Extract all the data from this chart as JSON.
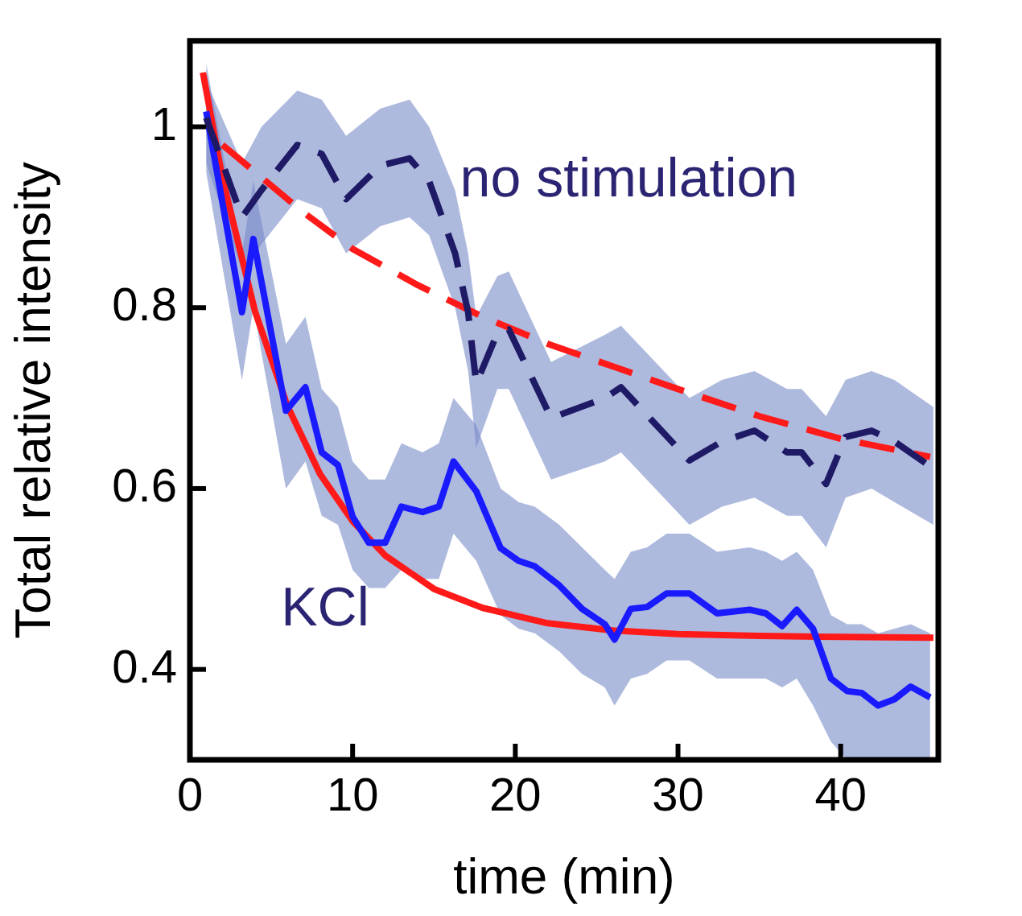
{
  "chart_data": {
    "type": "line",
    "xlabel": "time (min)",
    "ylabel": "Total relative intensity",
    "xlim": [
      0,
      46
    ],
    "xticks": [
      0,
      10,
      20,
      30,
      40
    ],
    "ylim": [
      0.3,
      1.095
    ],
    "yticks": [
      0.4,
      0.6,
      0.8,
      1
    ],
    "legend": false,
    "marker": "none",
    "series": [
      {
        "name": "no stimulation",
        "color": "#1f1a66",
        "line_style": "dashed",
        "x": [
          1,
          3.2,
          4.4,
          6.6,
          8.1,
          9.6,
          11.7,
          13.5,
          14.7,
          16.3,
          17.1,
          17.6,
          18.9,
          19.6,
          22.2,
          25.5,
          26.5,
          30.7,
          32.7,
          34.7,
          36.7,
          37.6,
          39.1,
          40.3,
          41.9,
          43.3,
          45.7
        ],
        "values": [
          1.01,
          0.9,
          0.93,
          0.98,
          0.97,
          0.92,
          0.957,
          0.965,
          0.94,
          0.86,
          0.795,
          0.716,
          0.772,
          0.776,
          0.678,
          0.7,
          0.712,
          0.631,
          0.652,
          0.664,
          0.64,
          0.64,
          0.605,
          0.657,
          0.664,
          0.652,
          0.622
        ],
        "upper": [
          1.05,
          0.96,
          1.0,
          1.04,
          1.03,
          0.99,
          1.02,
          1.03,
          1.0,
          0.93,
          0.86,
          0.79,
          0.835,
          0.84,
          0.74,
          0.77,
          0.78,
          0.7,
          0.72,
          0.73,
          0.71,
          0.71,
          0.68,
          0.72,
          0.73,
          0.72,
          0.69
        ],
        "lower": [
          0.96,
          0.84,
          0.87,
          0.92,
          0.91,
          0.86,
          0.89,
          0.9,
          0.88,
          0.8,
          0.73,
          0.645,
          0.71,
          0.71,
          0.61,
          0.63,
          0.64,
          0.56,
          0.58,
          0.59,
          0.57,
          0.57,
          0.535,
          0.59,
          0.6,
          0.585,
          0.56
        ]
      },
      {
        "name": "KCl",
        "color": "#1a1aff",
        "line_style": "solid",
        "x": [
          1,
          3.2,
          3.9,
          5.9,
          7.1,
          8.1,
          9.1,
          10,
          11,
          12,
          13,
          14.3,
          15.3,
          16.2,
          17.6,
          19.1,
          20.2,
          21.2,
          22.7,
          24.1,
          25.5,
          26.1,
          27.1,
          28.1,
          29.3,
          30.7,
          32.4,
          34.4,
          35.4,
          36.4,
          37.3,
          38.3,
          39.4,
          40.4,
          41.3,
          42.3,
          43.3,
          44.3,
          45.5
        ],
        "values": [
          1.017,
          0.795,
          0.876,
          0.686,
          0.712,
          0.64,
          0.626,
          0.569,
          0.54,
          0.54,
          0.58,
          0.574,
          0.58,
          0.63,
          0.597,
          0.534,
          0.52,
          0.514,
          0.493,
          0.467,
          0.45,
          0.433,
          0.467,
          0.469,
          0.484,
          0.484,
          0.462,
          0.466,
          0.462,
          0.448,
          0.466,
          0.445,
          0.39,
          0.376,
          0.374,
          0.36,
          0.367,
          0.381,
          0.369
        ],
        "upper": [
          1.07,
          0.86,
          0.94,
          0.76,
          0.79,
          0.71,
          0.69,
          0.63,
          0.61,
          0.61,
          0.65,
          0.64,
          0.65,
          0.7,
          0.67,
          0.6,
          0.585,
          0.58,
          0.56,
          0.535,
          0.51,
          0.5,
          0.53,
          0.535,
          0.55,
          0.55,
          0.53,
          0.535,
          0.53,
          0.52,
          0.53,
          0.51,
          0.46,
          0.45,
          0.45,
          0.44,
          0.445,
          0.45,
          0.44
        ],
        "lower": [
          0.95,
          0.72,
          0.8,
          0.6,
          0.63,
          0.57,
          0.56,
          0.51,
          0.49,
          0.49,
          0.51,
          0.5,
          0.5,
          0.55,
          0.52,
          0.46,
          0.445,
          0.44,
          0.42,
          0.395,
          0.38,
          0.36,
          0.39,
          0.395,
          0.41,
          0.41,
          0.39,
          0.39,
          0.39,
          0.38,
          0.39,
          0.36,
          0.32,
          0.3,
          0.3,
          0.3,
          0.3,
          0.3,
          0.3
        ]
      },
      {
        "color": "#ff1a1a",
        "line_style": "solid",
        "x": [
          0.8,
          2,
          4,
          6,
          8,
          10,
          12,
          15,
          18,
          22,
          26,
          30,
          35,
          40,
          45.7
        ],
        "values": [
          1.06,
          0.943,
          0.796,
          0.691,
          0.616,
          0.564,
          0.526,
          0.489,
          0.468,
          0.451,
          0.443,
          0.439,
          0.437,
          0.436,
          0.435
        ]
      },
      {
        "color": "#ff1a1a",
        "line_style": "dashed",
        "x": [
          2,
          4,
          7,
          10,
          14,
          18,
          22,
          26,
          30,
          35,
          40,
          45.5
        ],
        "values": [
          0.98,
          0.95,
          0.905,
          0.865,
          0.825,
          0.79,
          0.76,
          0.735,
          0.71,
          0.68,
          0.655,
          0.635
        ]
      }
    ]
  }
}
